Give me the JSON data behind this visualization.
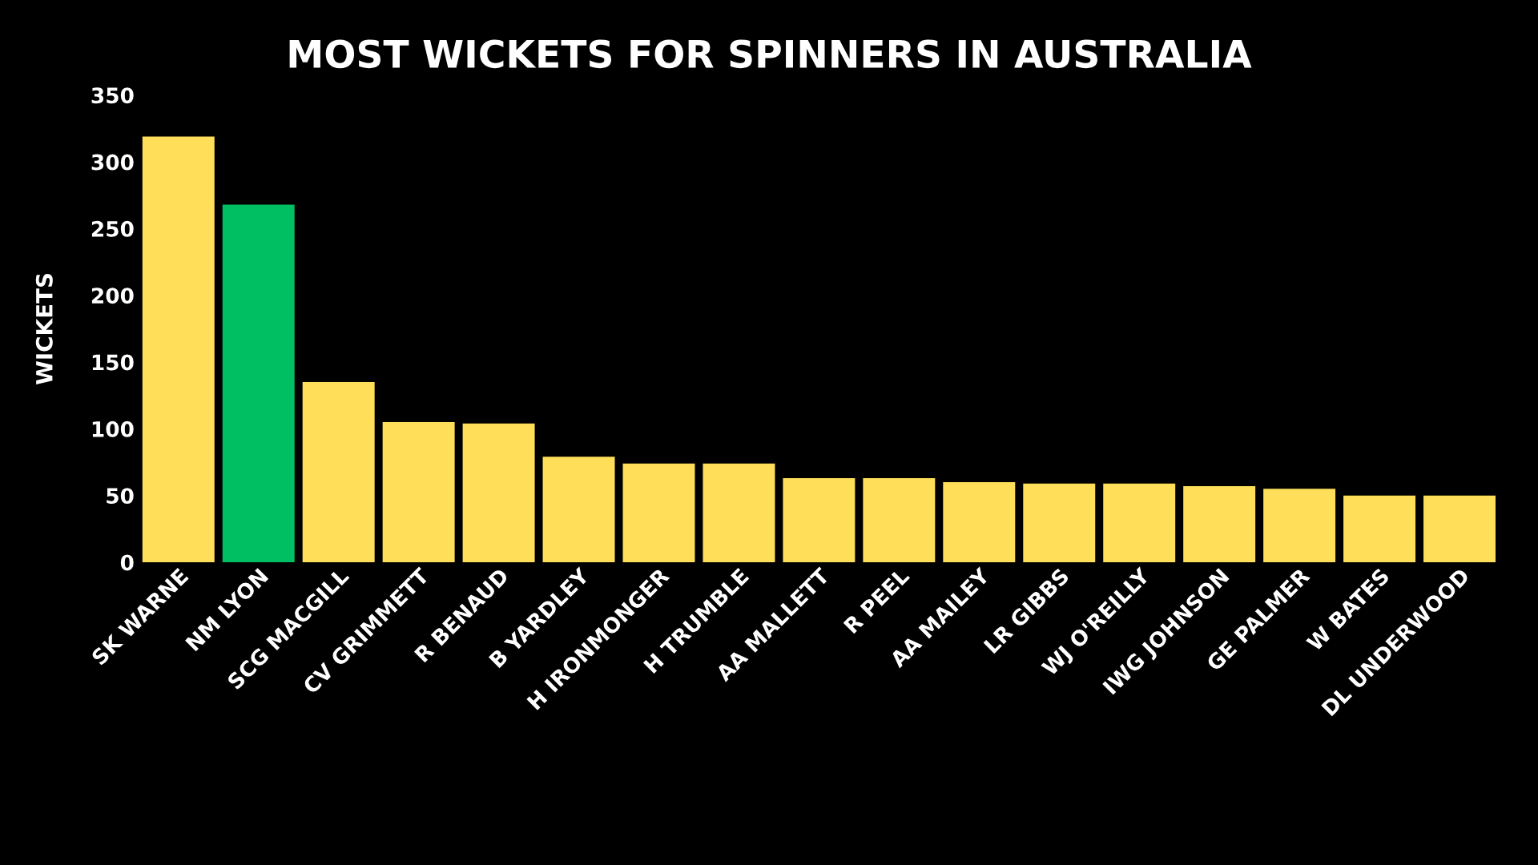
{
  "chart_data": {
    "type": "bar",
    "title": "MOST WICKETS FOR SPINNERS IN AUSTRALIA",
    "ylabel": "WICKETS",
    "categories": [
      "SK WARNE",
      "NM LYON",
      "SCG MACGILL",
      "CV GRIMMETT",
      "R BENAUD",
      "B YARDLEY",
      "H IRONMONGER",
      "H TRUMBLE",
      "AA MALLETT",
      "R PEEL",
      "AA MAILEY",
      "LR GIBBS",
      "WJ O'REILLY",
      "IWG JOHNSON",
      "GE PALMER",
      "W BATES",
      "DL UNDERWOOD"
    ],
    "values": [
      319,
      268,
      135,
      105,
      104,
      79,
      74,
      74,
      63,
      63,
      60,
      59,
      59,
      57,
      55,
      50,
      50
    ],
    "colors": [
      "#ffde59",
      "#00bf63",
      "#ffde59",
      "#ffde59",
      "#ffde59",
      "#ffde59",
      "#ffde59",
      "#ffde59",
      "#ffde59",
      "#ffde59",
      "#ffde59",
      "#ffde59",
      "#ffde59",
      "#ffde59",
      "#ffde59",
      "#ffde59",
      "#ffde59"
    ],
    "ylim": [
      0,
      350
    ],
    "yticks": [
      0,
      50,
      100,
      150,
      200,
      250,
      300,
      350
    ],
    "grid": false
  }
}
